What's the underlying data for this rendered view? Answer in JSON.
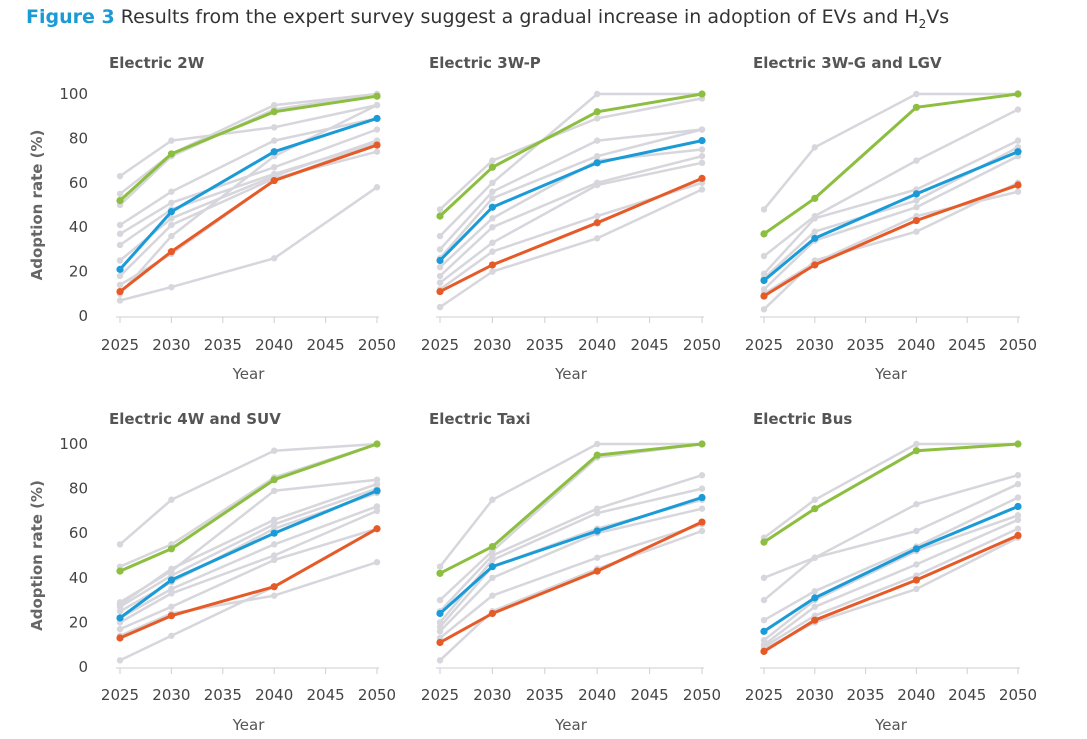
{
  "title": {
    "figure_label": "Figure 3",
    "text": "Results from the expert survey suggest a gradual increase in adoption of EVs and",
    "h2_main": "H",
    "h2_sub": "2",
    "h2_tail": "Vs"
  },
  "colors": {
    "green": "#8cbe3f",
    "blue": "#1a9bd7",
    "orange": "#e55a27",
    "grey": "#d6d6dc"
  },
  "chart_data": [
    {
      "type": "line",
      "title": "Electric 2W",
      "xlabel": "Year",
      "ylabel": "Adoption rate (%)",
      "x": [
        2025,
        2030,
        2040,
        2050
      ],
      "xticks": [
        "2025",
        "2030",
        "2035",
        "2040",
        "2045",
        "2050"
      ],
      "yticks": [
        "0",
        "20",
        "40",
        "60",
        "80",
        "100"
      ],
      "ylim": [
        0,
        100
      ],
      "series": [
        {
          "color": "green",
          "values": [
            52,
            73,
            92,
            99
          ]
        },
        {
          "color": "blue",
          "values": [
            21,
            47,
            74,
            89
          ]
        },
        {
          "color": "orange",
          "values": [
            11,
            29,
            61,
            77
          ]
        }
      ],
      "grey_series": [
        [
          63,
          79,
          85,
          95
        ],
        [
          55,
          73,
          95,
          100
        ],
        [
          50,
          72,
          93,
          100
        ],
        [
          41,
          56,
          79,
          89
        ],
        [
          37,
          51,
          67,
          84
        ],
        [
          32,
          48,
          64,
          78
        ],
        [
          25,
          44,
          63,
          79
        ],
        [
          18,
          41,
          62,
          74
        ],
        [
          14,
          28,
          61,
          78
        ],
        [
          7,
          13,
          26,
          58
        ],
        [
          10,
          36,
          72,
          95
        ]
      ]
    },
    {
      "type": "line",
      "title": "Electric 3W-P",
      "xlabel": "Year",
      "x": [
        2025,
        2030,
        2040,
        2050
      ],
      "xticks": [
        "2025",
        "2030",
        "2035",
        "2040",
        "2045",
        "2050"
      ],
      "ylim": [
        0,
        100
      ],
      "series": [
        {
          "color": "green",
          "values": [
            45,
            67,
            92,
            100
          ]
        },
        {
          "color": "blue",
          "values": [
            25,
            49,
            69,
            79
          ]
        },
        {
          "color": "orange",
          "values": [
            11,
            23,
            42,
            62
          ]
        }
      ],
      "grey_series": [
        [
          48,
          70,
          89,
          98
        ],
        [
          36,
          60,
          100,
          100
        ],
        [
          30,
          56,
          79,
          84
        ],
        [
          26,
          53,
          72,
          84
        ],
        [
          22,
          44,
          70,
          75
        ],
        [
          18,
          40,
          60,
          72
        ],
        [
          15,
          33,
          59,
          69
        ],
        [
          12,
          29,
          45,
          60
        ],
        [
          4,
          20,
          35,
          57
        ]
      ]
    },
    {
      "type": "line",
      "title": "Electric 3W-G and LGV",
      "xlabel": "Year",
      "x": [
        2025,
        2030,
        2040,
        2050
      ],
      "xticks": [
        "2025",
        "2030",
        "2035",
        "2040",
        "2045",
        "2050"
      ],
      "ylim": [
        0,
        100
      ],
      "series": [
        {
          "color": "green",
          "values": [
            37,
            53,
            94,
            100
          ]
        },
        {
          "color": "blue",
          "values": [
            16,
            35,
            55,
            74
          ]
        },
        {
          "color": "orange",
          "values": [
            9,
            23,
            43,
            59
          ]
        }
      ],
      "grey_series": [
        [
          48,
          76,
          100,
          100
        ],
        [
          27,
          45,
          70,
          93
        ],
        [
          19,
          44,
          57,
          79
        ],
        [
          17,
          38,
          52,
          76
        ],
        [
          12,
          34,
          49,
          72
        ],
        [
          3,
          25,
          38,
          60
        ],
        [
          10,
          24,
          45,
          56
        ]
      ]
    },
    {
      "type": "line",
      "title": "Electric 4W and SUV",
      "xlabel": "Year",
      "ylabel": "Adoption rate (%)",
      "x": [
        2025,
        2030,
        2040,
        2050
      ],
      "xticks": [
        "2025",
        "2030",
        "2035",
        "2040",
        "2045",
        "2050"
      ],
      "yticks": [
        "0",
        "20",
        "40",
        "60",
        "80",
        "100"
      ],
      "ylim": [
        0,
        100
      ],
      "series": [
        {
          "color": "green",
          "values": [
            43,
            53,
            84,
            100
          ]
        },
        {
          "color": "blue",
          "values": [
            22,
            39,
            60,
            79
          ]
        },
        {
          "color": "orange",
          "values": [
            13,
            23,
            36,
            62
          ]
        }
      ],
      "grey_series": [
        [
          55,
          75,
          97,
          100
        ],
        [
          45,
          55,
          85,
          100
        ],
        [
          29,
          43,
          79,
          84
        ],
        [
          28,
          44,
          66,
          82
        ],
        [
          27,
          41,
          64,
          80
        ],
        [
          25,
          38,
          62,
          78
        ],
        [
          22,
          35,
          55,
          72
        ],
        [
          20,
          33,
          50,
          70
        ],
        [
          17,
          27,
          48,
          62
        ],
        [
          14,
          24,
          32,
          47
        ],
        [
          3,
          14,
          36,
          62
        ]
      ]
    },
    {
      "type": "line",
      "title": "Electric Taxi",
      "xlabel": "Year",
      "x": [
        2025,
        2030,
        2040,
        2050
      ],
      "xticks": [
        "2025",
        "2030",
        "2035",
        "2040",
        "2045",
        "2050"
      ],
      "ylim": [
        0,
        100
      ],
      "series": [
        {
          "color": "green",
          "values": [
            42,
            54,
            95,
            100
          ]
        },
        {
          "color": "blue",
          "values": [
            24,
            45,
            61,
            76
          ]
        },
        {
          "color": "orange",
          "values": [
            11,
            24,
            43,
            65
          ]
        }
      ],
      "grey_series": [
        [
          45,
          75,
          100,
          100
        ],
        [
          30,
          52,
          94,
          100
        ],
        [
          25,
          50,
          71,
          86
        ],
        [
          20,
          48,
          69,
          80
        ],
        [
          18,
          45,
          62,
          75
        ],
        [
          16,
          40,
          60,
          71
        ],
        [
          13,
          32,
          49,
          64
        ],
        [
          3,
          25,
          44,
          61
        ]
      ]
    },
    {
      "type": "line",
      "title": "Electric Bus",
      "xlabel": "Year",
      "x": [
        2025,
        2030,
        2040,
        2050
      ],
      "xticks": [
        "2025",
        "2030",
        "2035",
        "2040",
        "2045",
        "2050"
      ],
      "ylim": [
        0,
        100
      ],
      "series": [
        {
          "color": "green",
          "values": [
            56,
            71,
            97,
            100
          ]
        },
        {
          "color": "blue",
          "values": [
            16,
            31,
            53,
            72
          ]
        },
        {
          "color": "orange",
          "values": [
            7,
            21,
            39,
            59
          ]
        }
      ],
      "grey_series": [
        [
          58,
          75,
          100,
          100
        ],
        [
          40,
          49,
          73,
          86
        ],
        [
          30,
          49,
          61,
          82
        ],
        [
          21,
          34,
          54,
          76
        ],
        [
          12,
          30,
          52,
          68
        ],
        [
          10,
          27,
          46,
          66
        ],
        [
          9,
          23,
          41,
          62
        ],
        [
          8,
          20,
          35,
          58
        ]
      ]
    }
  ]
}
